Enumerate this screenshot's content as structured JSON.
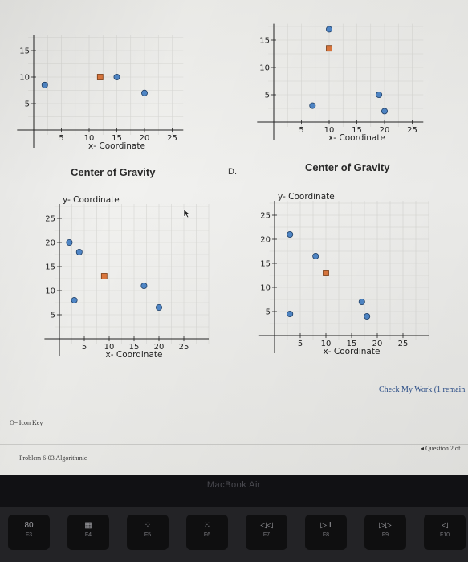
{
  "charts": [
    {
      "id": "top-left",
      "xlabel": "x- Coordinate",
      "ylabel": "",
      "xticks": [
        5,
        10,
        15,
        20,
        25
      ],
      "yticks": [
        5,
        10,
        15
      ],
      "points": [
        {
          "x": 2,
          "y": 8.5,
          "shape": "circle"
        },
        {
          "x": 12,
          "y": 10,
          "shape": "square"
        },
        {
          "x": 15,
          "y": 10,
          "shape": "circle"
        },
        {
          "x": 20,
          "y": 7,
          "shape": "circle"
        }
      ]
    },
    {
      "id": "top-right",
      "xlabel": "x- Coordinate",
      "ylabel": "",
      "xticks": [
        5,
        10,
        15,
        20,
        25
      ],
      "yticks": [
        5,
        10,
        15
      ],
      "points": [
        {
          "x": 10,
          "y": 17,
          "shape": "circle"
        },
        {
          "x": 10,
          "y": 13.5,
          "shape": "square"
        },
        {
          "x": 7,
          "y": 3,
          "shape": "circle"
        },
        {
          "x": 19,
          "y": 5,
          "shape": "circle"
        },
        {
          "x": 20,
          "y": 2,
          "shape": "circle"
        }
      ]
    },
    {
      "id": "bottom-left",
      "title": "Center of Gravity",
      "xlabel": "x- Coordinate",
      "ylabel": "y- Coordinate",
      "xticks": [
        5,
        10,
        15,
        20,
        25
      ],
      "yticks": [
        5,
        10,
        15,
        20,
        25
      ],
      "points": [
        {
          "x": 2,
          "y": 20,
          "shape": "circle"
        },
        {
          "x": 4,
          "y": 18,
          "shape": "circle"
        },
        {
          "x": 9,
          "y": 13,
          "shape": "square"
        },
        {
          "x": 17,
          "y": 11,
          "shape": "circle"
        },
        {
          "x": 20,
          "y": 6.5,
          "shape": "circle"
        },
        {
          "x": 3,
          "y": 8,
          "shape": "circle"
        }
      ]
    },
    {
      "id": "bottom-right",
      "title": "Center of Gravity",
      "xlabel": "x- Coordinate",
      "ylabel": "y- Coordinate",
      "xticks": [
        5,
        10,
        15,
        20,
        25
      ],
      "yticks": [
        5,
        10,
        15,
        20,
        25
      ],
      "points": [
        {
          "x": 3,
          "y": 21,
          "shape": "circle"
        },
        {
          "x": 8,
          "y": 16.5,
          "shape": "circle"
        },
        {
          "x": 10,
          "y": 13,
          "shape": "square"
        },
        {
          "x": 17,
          "y": 7,
          "shape": "circle"
        },
        {
          "x": 3,
          "y": 4.5,
          "shape": "circle"
        },
        {
          "x": 18,
          "y": 4,
          "shape": "circle"
        }
      ]
    }
  ],
  "option_d_label": "D.",
  "check_my_work": "Check My Work (1 remain",
  "icon_key": "Icon Key",
  "problem_label": "Problem 6-03 Algorithmic",
  "question_label": "Question 2 of",
  "macbook_label": "MacBook Air",
  "keys": [
    {
      "sym": "80",
      "lab": "F3"
    },
    {
      "sym": "▦",
      "lab": "F4"
    },
    {
      "sym": "⁘",
      "lab": "F5"
    },
    {
      "sym": "⁙",
      "lab": "F6"
    },
    {
      "sym": "◁◁",
      "lab": "F7"
    },
    {
      "sym": "▷II",
      "lab": "F8"
    },
    {
      "sym": "▷▷",
      "lab": "F9"
    },
    {
      "sym": "◁",
      "lab": "F10"
    }
  ],
  "colors": {
    "circle_fill": "#4f86c6",
    "circle_stroke": "#1f3f66",
    "square_fill": "#d9763d",
    "square_stroke": "#7a3a12"
  }
}
